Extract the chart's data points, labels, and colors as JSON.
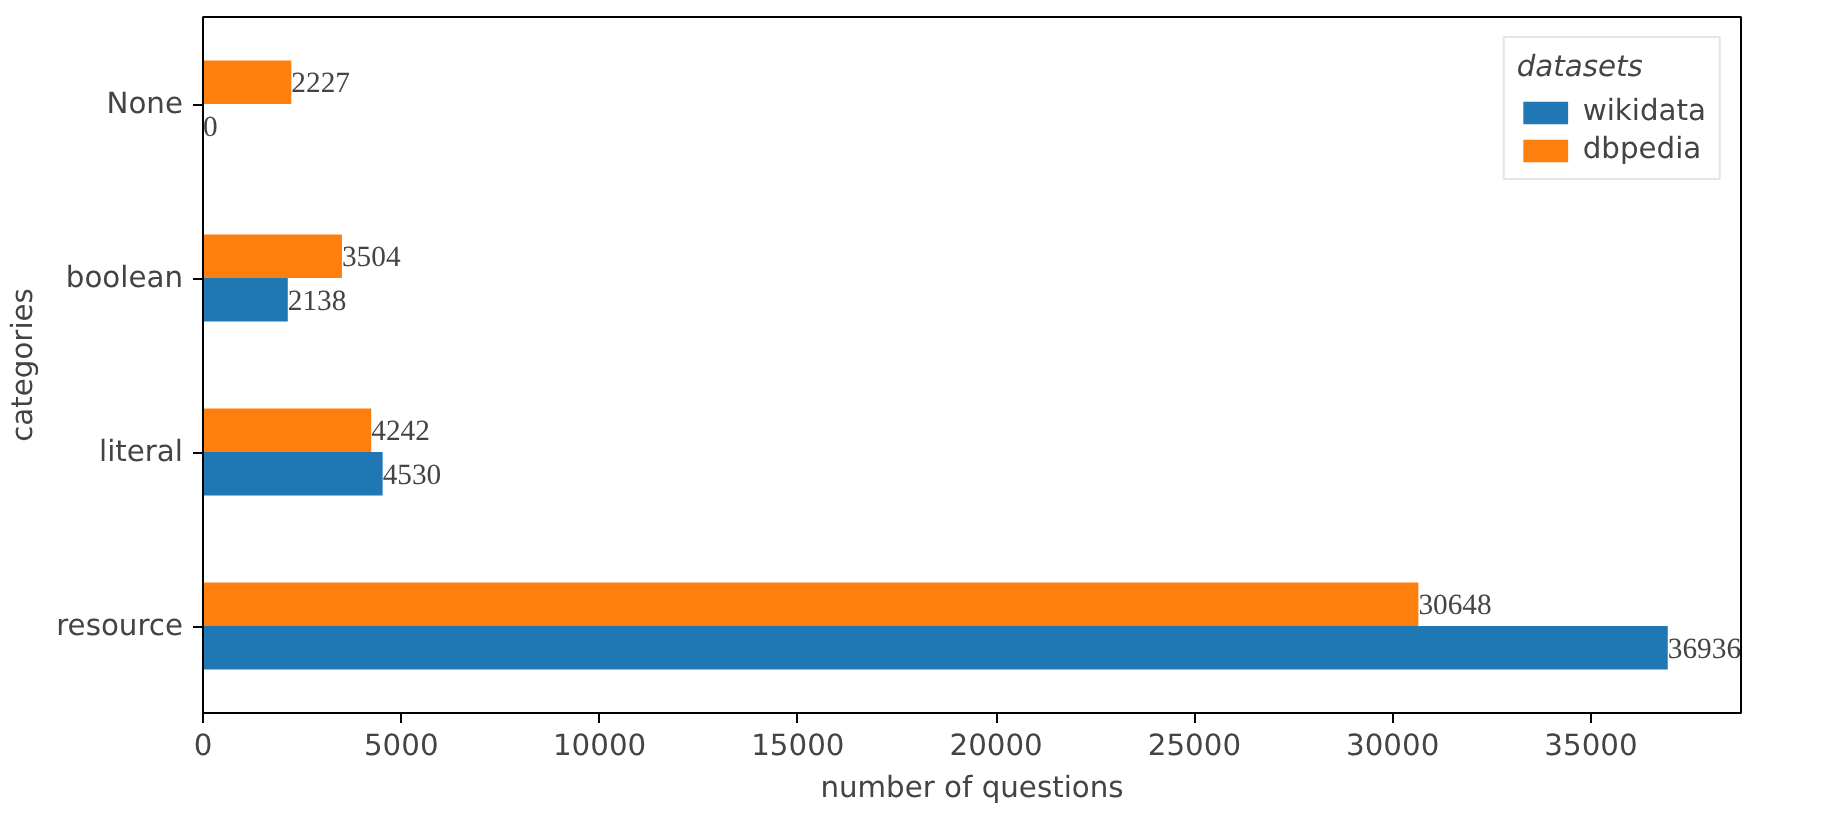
{
  "chart_data": {
    "type": "bar",
    "orientation": "horizontal",
    "categories": [
      "None",
      "boolean",
      "literal",
      "resource"
    ],
    "series": [
      {
        "name": "wikidata",
        "color": "#1f77b4",
        "values": [
          0,
          2138,
          4530,
          36936
        ]
      },
      {
        "name": "dbpedia",
        "color": "#ff7f0e",
        "values": [
          2227,
          3504,
          4242,
          30648
        ]
      }
    ],
    "xlim": [
      0,
      38783
    ],
    "xticks": [
      0,
      5000,
      10000,
      15000,
      20000,
      25000,
      30000,
      35000
    ],
    "xlabel": "number of questions",
    "ylabel": "categories",
    "legend_title": "datasets",
    "legend": "top right",
    "data_labels": true
  }
}
